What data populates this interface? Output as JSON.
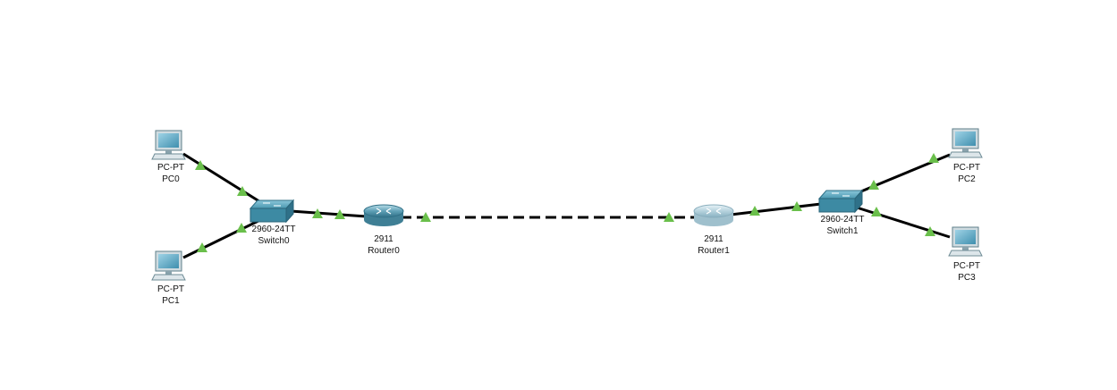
{
  "topology": {
    "devices": [
      {
        "id": "pc0",
        "model": "PC-PT",
        "name": "PC0",
        "type": "pc"
      },
      {
        "id": "pc1",
        "model": "PC-PT",
        "name": "PC1",
        "type": "pc"
      },
      {
        "id": "switch0",
        "model": "2960-24TT",
        "name": "Switch0",
        "type": "switch"
      },
      {
        "id": "router0",
        "model": "2911",
        "name": "Router0",
        "type": "router"
      },
      {
        "id": "router1",
        "model": "2911",
        "name": "Router1",
        "type": "router"
      },
      {
        "id": "switch1",
        "model": "2960-24TT",
        "name": "Switch1",
        "type": "switch"
      },
      {
        "id": "pc2",
        "model": "PC-PT",
        "name": "PC2",
        "type": "pc"
      },
      {
        "id": "pc3",
        "model": "PC-PT",
        "name": "PC3",
        "type": "pc"
      }
    ],
    "links": [
      {
        "from": "pc0",
        "to": "switch0",
        "style": "solid",
        "status": "up"
      },
      {
        "from": "pc1",
        "to": "switch0",
        "style": "solid",
        "status": "up"
      },
      {
        "from": "switch0",
        "to": "router0",
        "style": "solid",
        "status": "up"
      },
      {
        "from": "router0",
        "to": "router1",
        "style": "dashed",
        "status": "up"
      },
      {
        "from": "router1",
        "to": "switch1",
        "style": "solid",
        "status": "up"
      },
      {
        "from": "switch1",
        "to": "pc2",
        "style": "solid",
        "status": "up"
      },
      {
        "from": "switch1",
        "to": "pc3",
        "style": "solid",
        "status": "up"
      }
    ]
  },
  "colors": {
    "link": "#000000",
    "link_up_indicator": "#6abf4b",
    "switch_body": "#3f8ea6",
    "router_body": "#4a8aa0",
    "router_inactive_body": "#a9c9d6",
    "pc_screen": "#5aa6c4",
    "pc_body": "#c9d6dc"
  }
}
